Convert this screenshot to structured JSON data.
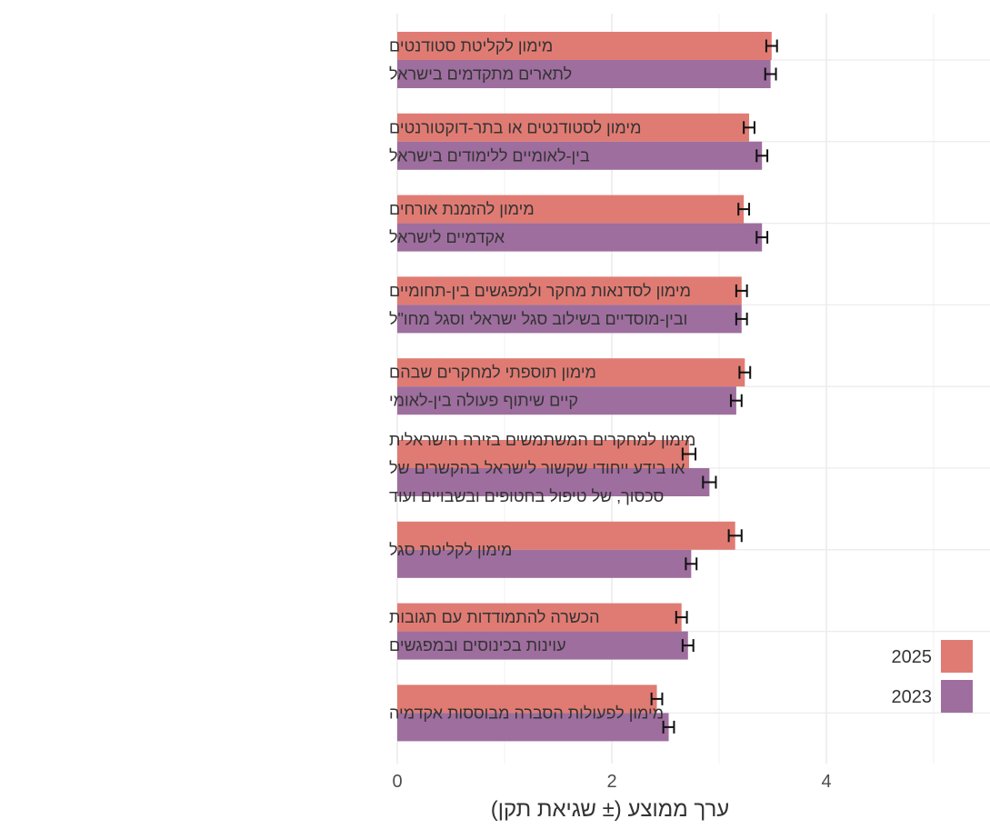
{
  "chart_data": {
    "type": "bar",
    "orientation": "horizontal",
    "xlabel": "ערך ממוצע (± שגיאת תקן)",
    "xlim": [
      0,
      5.5
    ],
    "xticks": [
      0,
      2,
      4
    ],
    "grid": true,
    "legend_position": "bottom-right",
    "categories": [
      [
        "מימון לקליטת סטודנטים",
        "לתארים מתקדמים בישראל"
      ],
      [
        "מימון לסטודנטים או בתר-דוקטורנטים",
        "בין-לאומיים ללימודים בישראל"
      ],
      [
        "מימון להזמנת אורחים",
        "אקדמיים לישראל"
      ],
      [
        "מימון לסדנאות מחקר ולמפגשים בין-תחומיים",
        "ובין-מוסדיים בשילוב סגל ישראלי וסגל מחו\"ל"
      ],
      [
        "מימון תוספתי למחקרים שבהם",
        "קיים שיתוף פעולה בין-לאומי"
      ],
      [
        "מימון למחקרים המשתמשים בזירה הישראלית",
        "או בידע ייחודי שקשור לישראל בהקשרים של",
        "סכסוך, של טיפול בחטופים ובשבויים ועוד"
      ],
      [
        "מימון לקליטת סגל"
      ],
      [
        "הכשרה להתמודדות עם תגובות",
        "עוינות בכינוסים ובמפגשים"
      ],
      [
        "מימון לפעולות הסברה מבוססות אקדמיה"
      ]
    ],
    "series": [
      {
        "name": "2025",
        "color": "#E07B73",
        "values": [
          3.49,
          3.28,
          3.23,
          3.21,
          3.24,
          2.72,
          3.15,
          2.65,
          2.42
        ],
        "errors": [
          0.05,
          0.05,
          0.05,
          0.05,
          0.05,
          0.06,
          0.06,
          0.05,
          0.05
        ]
      },
      {
        "name": "2023",
        "color": "#9E6E9E",
        "values": [
          3.48,
          3.4,
          3.4,
          3.21,
          3.16,
          2.91,
          2.74,
          2.71,
          2.53
        ],
        "errors": [
          0.05,
          0.05,
          0.05,
          0.05,
          0.05,
          0.06,
          0.05,
          0.05,
          0.05
        ]
      }
    ]
  }
}
